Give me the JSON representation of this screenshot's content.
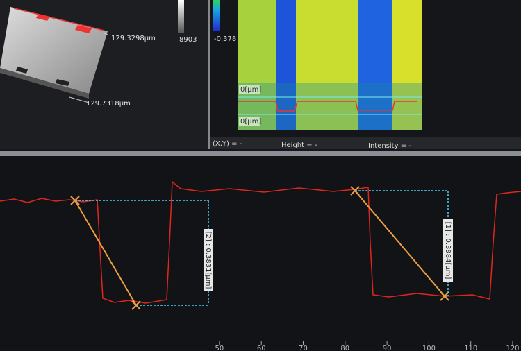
{
  "view3d": {
    "width_label": "129.3298µm",
    "length_label": "129.7318µm"
  },
  "colorbars": {
    "gray_min": "8903",
    "color_min": "-0.378"
  },
  "image_panel": {
    "axis_label_top": "0[µm]",
    "axis_label_bottom": "0[µm]"
  },
  "status_bar": {
    "xy": "(X,Y)  =  -",
    "height": "Height  =  -",
    "intensity": "Intensity  =  -"
  },
  "profile": {
    "measure_2": "[2] : 0.3831[µm]",
    "measure_1": "[1] : 0.3884[µm]",
    "x_ticks": [
      50,
      60,
      70,
      80,
      90,
      100,
      110,
      120
    ]
  }
}
